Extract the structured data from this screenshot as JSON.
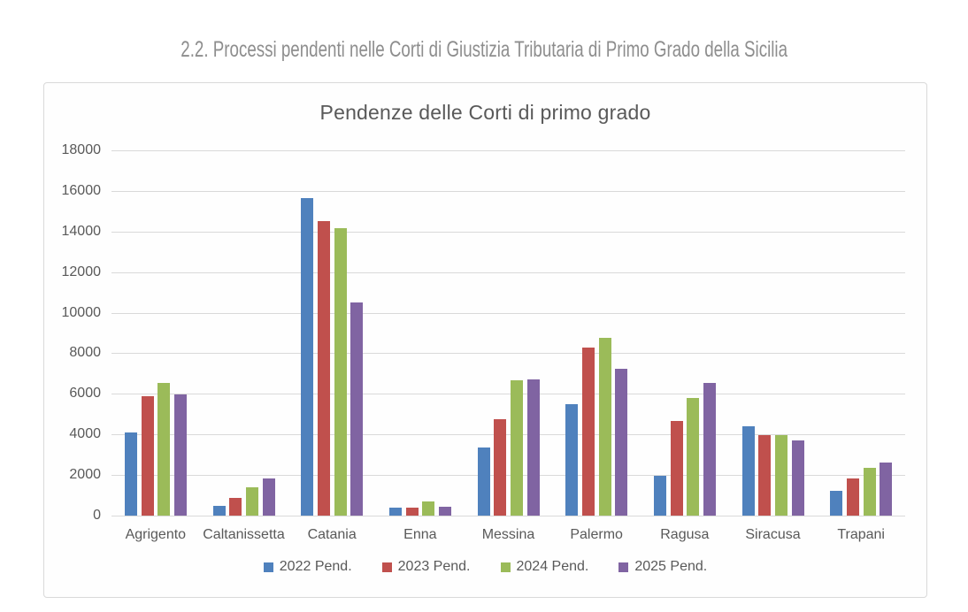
{
  "page": {
    "heading": "2.2. Processi pendenti nelle Corti di Giustizia Tributaria di Primo Grado della Sicilia"
  },
  "palette": {
    "heading_text": "#8e8e8e",
    "chart_text": "#595959",
    "gridline": "#d9d9d9",
    "panel_border": "#d9d9d9",
    "background": "#ffffff"
  },
  "chart_data": {
    "type": "bar",
    "title": "Pendenze delle Corti di primo grado",
    "categories": [
      "Agrigento",
      "Caltanissetta",
      "Catania",
      "Enna",
      "Messina",
      "Palermo",
      "Ragusa",
      "Siracusa",
      "Trapani"
    ],
    "series": [
      {
        "name": "2022 Pend.",
        "color": "#4F81BD",
        "values": [
          4100,
          500,
          15650,
          400,
          3350,
          5500,
          1950,
          4400,
          1200
        ]
      },
      {
        "name": "2023 Pend.",
        "color": "#C0504D",
        "values": [
          5900,
          850,
          14500,
          380,
          4750,
          8300,
          4650,
          3950,
          1850
        ]
      },
      {
        "name": "2024 Pend.",
        "color": "#9BBB59",
        "values": [
          6550,
          1400,
          14150,
          700,
          6650,
          8750,
          5800,
          3950,
          2350
        ]
      },
      {
        "name": "2025 Pend.",
        "color": "#8064A2",
        "values": [
          5950,
          1850,
          10500,
          450,
          6700,
          7250,
          6550,
          3700,
          2600
        ]
      }
    ],
    "xlabel": "",
    "ylabel": "",
    "ylim": [
      0,
      18000
    ],
    "yticks": [
      0,
      2000,
      4000,
      6000,
      8000,
      10000,
      12000,
      14000,
      16000,
      18000
    ],
    "grid": "horizontal",
    "legend_position": "bottom"
  }
}
